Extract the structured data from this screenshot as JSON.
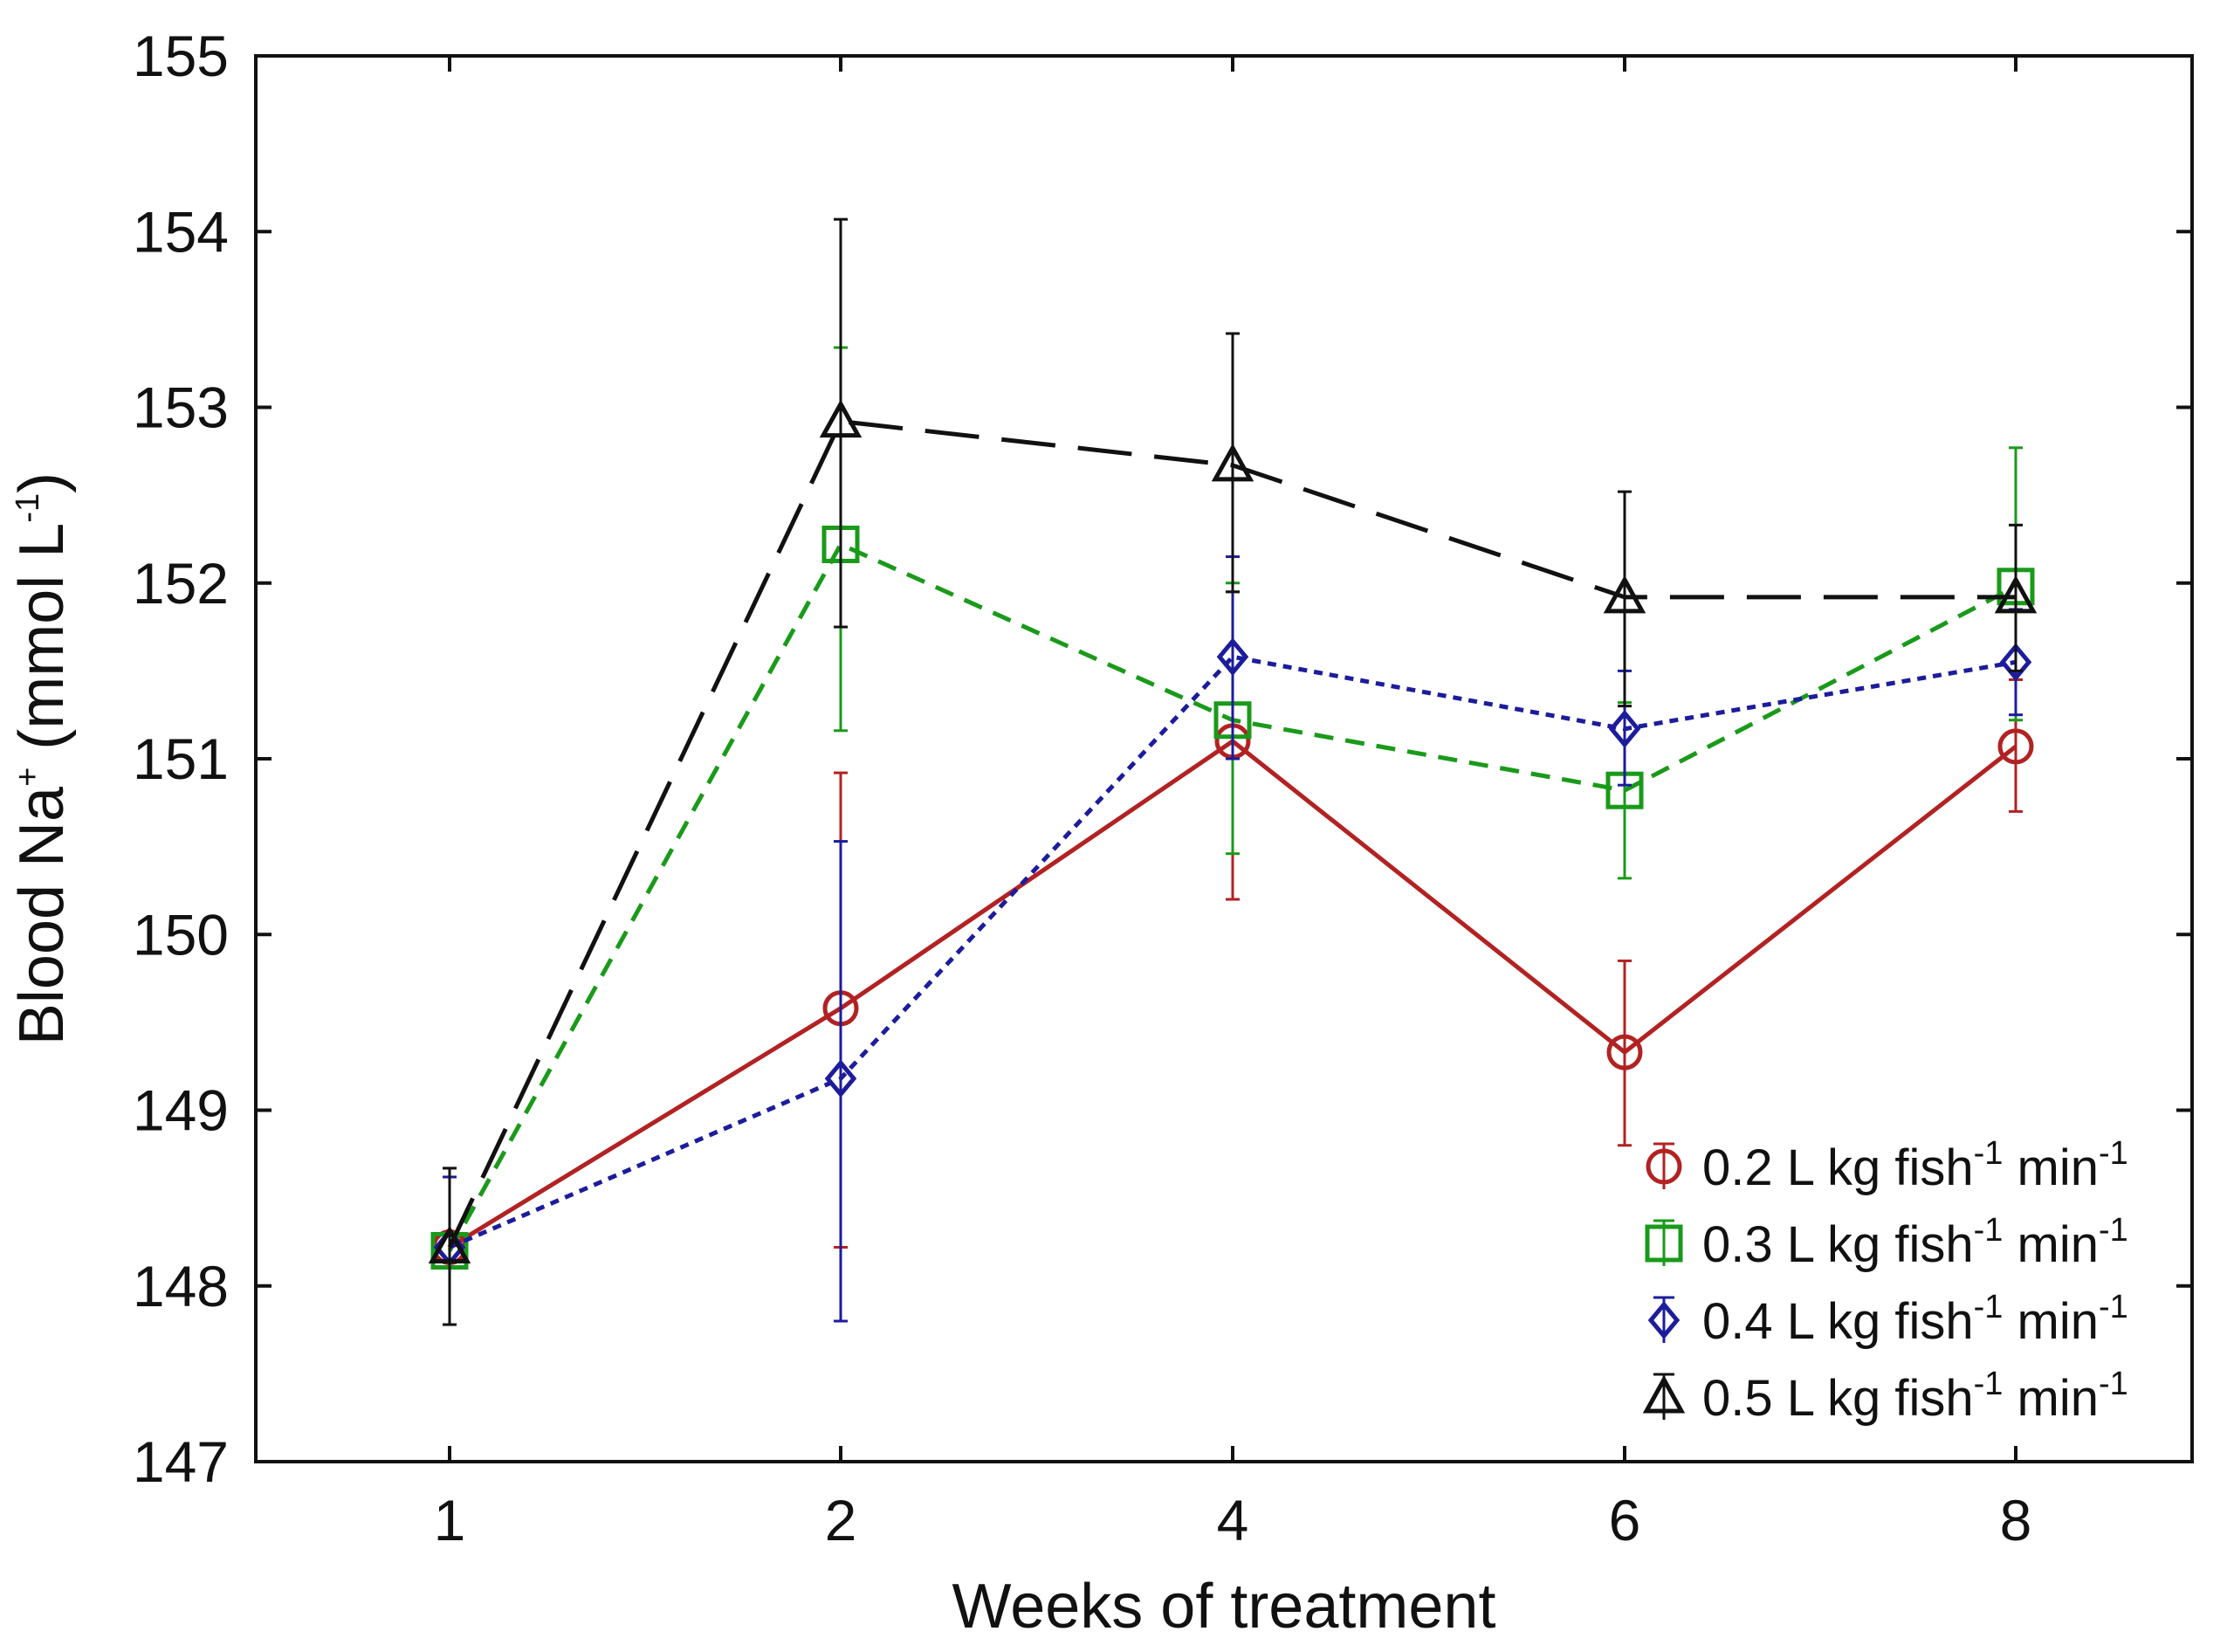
{
  "chart_data": {
    "type": "line",
    "title": "",
    "xlabel": "Weeks of treatment",
    "ylabel": {
      "main": "Blood Na",
      "sup": "+",
      "units_open": " (mmol L",
      "units_sup": "-1",
      "units_close": ")"
    },
    "categories": [
      "1",
      "2",
      "4",
      "6",
      "8"
    ],
    "ylim": [
      147,
      155
    ],
    "yticks": [
      "147",
      "148",
      "149",
      "150",
      "151",
      "152",
      "153",
      "154",
      "155"
    ],
    "grid": false,
    "legend_position": "bottom-right",
    "series": [
      {
        "name": "0.2 L kg fish",
        "name_sup1": "-1",
        "name_mid": " min",
        "name_sup2": "-1",
        "color": "#b22222",
        "marker": "circle",
        "dash": "solid",
        "values": [
          148.22,
          149.58,
          151.1,
          149.33,
          151.07
        ],
        "err_low": [
          147.78,
          148.22,
          150.2,
          148.8,
          150.7
        ],
        "err_high": [
          148.67,
          150.92,
          151.95,
          149.85,
          151.45
        ]
      },
      {
        "name": "0.3 L kg fish",
        "name_sup1": "-1",
        "name_mid": " min",
        "name_sup2": "-1",
        "color": "#1a9a1a",
        "marker": "square",
        "dash": "dashed",
        "values": [
          148.2,
          152.22,
          151.22,
          150.82,
          151.98
        ],
        "err_low": [
          147.78,
          151.16,
          150.46,
          150.32,
          151.22
        ],
        "err_high": [
          148.62,
          153.34,
          152.0,
          151.32,
          152.77
        ]
      },
      {
        "name": "0.4 L kg fish",
        "name_sup1": "-1",
        "name_mid": " min",
        "name_sup2": "-1",
        "color": "#1c1c9c",
        "marker": "diamond",
        "dash": "dotted",
        "values": [
          148.22,
          149.18,
          151.58,
          151.17,
          151.55
        ],
        "err_low": [
          147.78,
          147.8,
          151.0,
          150.85,
          151.25
        ],
        "err_high": [
          148.62,
          150.53,
          152.15,
          151.5,
          151.85
        ]
      },
      {
        "name": "0.5 L kg fish",
        "name_sup1": "-1",
        "name_mid": " min",
        "name_sup2": "-1",
        "color": "#111111",
        "marker": "triangle",
        "dash": "long-dash",
        "values": [
          148.22,
          152.92,
          152.67,
          151.92,
          151.92
        ],
        "err_low": [
          147.78,
          151.75,
          151.95,
          151.3,
          151.5
        ],
        "err_high": [
          148.67,
          154.07,
          153.42,
          152.52,
          152.33
        ]
      }
    ]
  }
}
